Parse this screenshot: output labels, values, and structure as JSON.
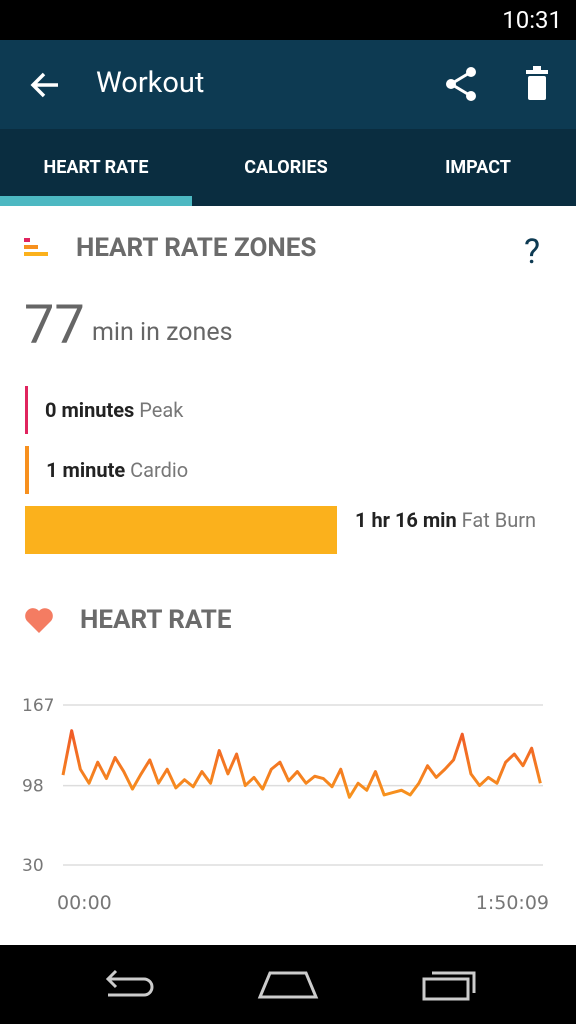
{
  "status_bar": {
    "time": "10:31"
  },
  "app_bar": {
    "title": "Workout"
  },
  "tabs": [
    "HEART RATE",
    "CALORIES",
    "IMPACT"
  ],
  "zones": {
    "title": "HEART RATE ZONES",
    "help": "?",
    "total": {
      "value": "77",
      "unit": "min in zones"
    },
    "items": [
      {
        "amount": "0 minutes",
        "name": "Peak",
        "minutes": 0,
        "color": "#e0245e"
      },
      {
        "amount": "1 minute",
        "name": "Cardio",
        "minutes": 1,
        "color": "#f7901e"
      },
      {
        "amount": "1 hr 16 min",
        "name": "Fat Burn",
        "minutes": 76,
        "color": "#fbb11c"
      }
    ]
  },
  "chart_data": {
    "type": "line",
    "title": "HEART RATE",
    "x": [
      0,
      120,
      240,
      360,
      480,
      600,
      720,
      840,
      960,
      1080,
      1200,
      1320,
      1440,
      1560,
      1680,
      1800,
      1920,
      2040,
      2160,
      2280,
      2400,
      2520,
      2640,
      2760,
      2880,
      3000,
      3120,
      3240,
      3360,
      3480,
      3600,
      3720,
      3840,
      3960,
      4080,
      4200,
      4320,
      4440,
      4560,
      4680,
      4800,
      4920,
      5040,
      5160,
      5280,
      5400,
      5520,
      5640,
      5760,
      5880,
      6000,
      6120,
      6240,
      6360,
      6480,
      6600
    ],
    "series": [
      {
        "color": "#f7941d",
        "values": [
          107,
          145,
          112,
          100,
          118,
          104,
          122,
          110,
          95,
          108,
          120,
          100,
          112,
          96,
          103,
          97,
          110,
          100,
          128,
          108,
          125,
          98,
          105,
          95,
          112,
          118,
          102,
          110,
          100,
          106,
          104,
          97,
          112,
          88,
          100,
          94,
          110,
          90,
          92,
          94,
          90,
          100,
          115,
          105,
          112,
          120,
          142,
          108,
          98,
          105,
          100,
          118,
          125,
          115,
          130,
          100
        ]
      }
    ],
    "xlim": [
      0,
      6609
    ],
    "xticks": [
      {
        "value": 0,
        "label": "00:00"
      },
      {
        "value": 6609,
        "label": "1:50:09"
      }
    ],
    "ylim": [
      30,
      167
    ],
    "yticks": [
      30,
      98,
      167
    ],
    "grid": true
  }
}
